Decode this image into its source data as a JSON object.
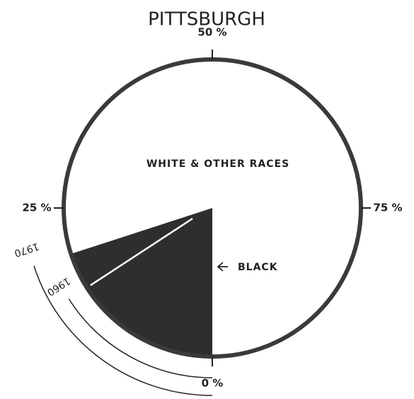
{
  "chart_data": {
    "type": "pie",
    "title": "PITTSBURGH",
    "categories": [
      "1970",
      "1960"
    ],
    "values": [
      20,
      16
    ],
    "series_names": [
      "BLACK",
      "WHITE & OTHER RACES"
    ],
    "color": "#2e2e2e",
    "ticks": [
      {
        "value": 0,
        "label": "0 %"
      },
      {
        "value": 25,
        "label": "25 %"
      },
      {
        "value": 50,
        "label": "50 %"
      },
      {
        "value": 75,
        "label": "75 %"
      }
    ]
  }
}
